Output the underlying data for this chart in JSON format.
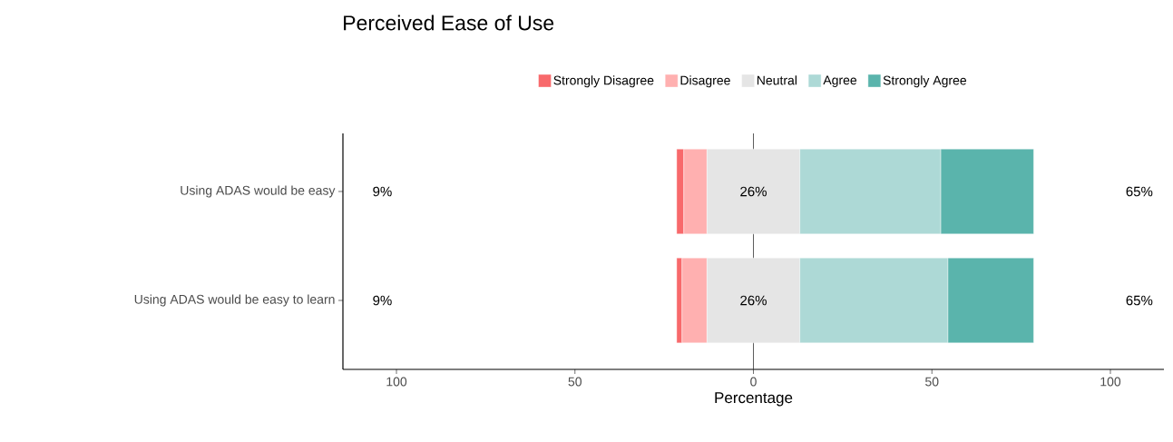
{
  "chart_data": {
    "type": "bar",
    "orientation": "horizontal",
    "title": "Perceived Ease of Use",
    "xlabel": "Percentage",
    "categories": [
      "Using ADAS would be easy",
      "Using ADAS would be easy to learn"
    ],
    "series": [
      {
        "name": "Strongly Disagree",
        "color": "#f8696b",
        "base": [
          -21.5,
          -21.5
        ],
        "values": [
          2,
          1.5
        ]
      },
      {
        "name": "Disagree",
        "color": "#ffb0b0",
        "base": [
          -19.5,
          -20
        ],
        "values": [
          6.5,
          7
        ]
      },
      {
        "name": "Neutral",
        "color": "#e5e5e5",
        "base": [
          -13,
          -13
        ],
        "values": [
          26,
          26
        ]
      },
      {
        "name": "Agree",
        "color": "#add9d6",
        "base": [
          13,
          13
        ],
        "values": [
          39.5,
          41.5
        ]
      },
      {
        "name": "Strongly Agree",
        "color": "#5ab4ac",
        "base": [
          52.5,
          54.5
        ],
        "values": [
          26,
          24
        ]
      }
    ],
    "xlim": [
      -115,
      115
    ],
    "xticks": [
      {
        "value": -100,
        "label": "100"
      },
      {
        "value": -50,
        "label": "50"
      },
      0,
      50,
      100
    ],
    "ref_lines": [
      {
        "axis": "x",
        "value": 0,
        "color": "#333333"
      }
    ],
    "annotations": [
      "9%",
      "26%",
      "65%",
      "9%",
      "26%",
      "65%"
    ],
    "legend": "top",
    "grid": false
  }
}
